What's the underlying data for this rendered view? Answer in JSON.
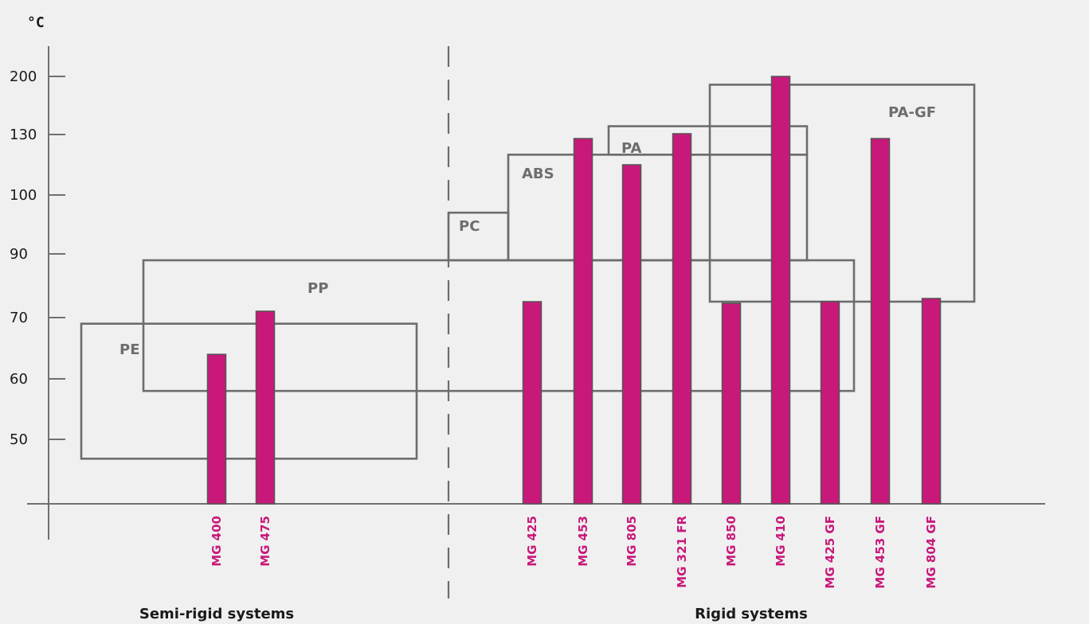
{
  "chart_data": {
    "type": "bar",
    "y_unit": "°C",
    "y_ticks": [
      50,
      60,
      70,
      90,
      100,
      130,
      200
    ],
    "categories": [
      "MG 400",
      "MG 475",
      "MG 425",
      "MG 453",
      "MG 805",
      "MG 321 FR",
      "MG 850",
      "MG 410",
      "MG 425 GF",
      "MG 453 GF",
      "MG 804 GF"
    ],
    "values": [
      64,
      72,
      75,
      128,
      115,
      131,
      74.5,
      200,
      75,
      128,
      76
    ],
    "bar_color": "#c8197a",
    "groups": [
      {
        "label": "Semi-rigid systems",
        "categories": [
          "MG 400",
          "MG 475"
        ]
      },
      {
        "label": "Rigid systems",
        "categories": [
          "MG 425",
          "MG 453",
          "MG 805",
          "MG 321 FR",
          "MG 850",
          "MG 410",
          "MG 425 GF",
          "MG 453 GF",
          "MG 804 GF"
        ]
      }
    ],
    "ranges": [
      {
        "label": "PE",
        "min": 47,
        "max": 69
      },
      {
        "label": "PP",
        "min": 58,
        "max": 88
      },
      {
        "label": "PC",
        "min": 88,
        "max": 97
      },
      {
        "label": "ABS",
        "min": 88,
        "max": 120
      },
      {
        "label": "PA",
        "min": 120,
        "max": 140
      },
      {
        "label": "PA-GF",
        "min": 75,
        "max": 190
      }
    ]
  }
}
